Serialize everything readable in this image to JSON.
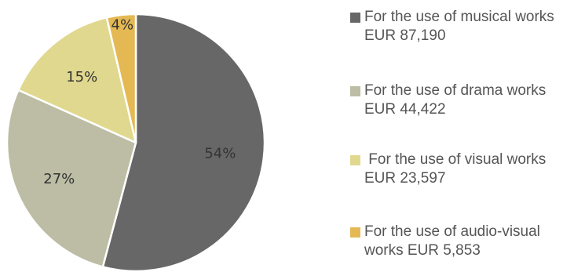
{
  "chart_data": {
    "type": "pie",
    "title": "",
    "slices": [
      {
        "label": "For the use of musical works EUR 87,190",
        "value": 87190,
        "percent_label": "54%",
        "color": "#676767"
      },
      {
        "label": "For the use of drama works EUR 44,422",
        "value": 44422,
        "percent_label": "27%",
        "color": "#bcbda4"
      },
      {
        "label": " For the use of visual works EUR 23,597",
        "value": 23597,
        "percent_label": "15%",
        "color": "#e0d88e"
      },
      {
        "label": "For the use of audio-visual works EUR 5,853",
        "value": 5853,
        "percent_label": "4%",
        "color": "#e4b954"
      }
    ],
    "start_angle_deg": 0,
    "direction": "clockwise",
    "legend_position": "right"
  }
}
